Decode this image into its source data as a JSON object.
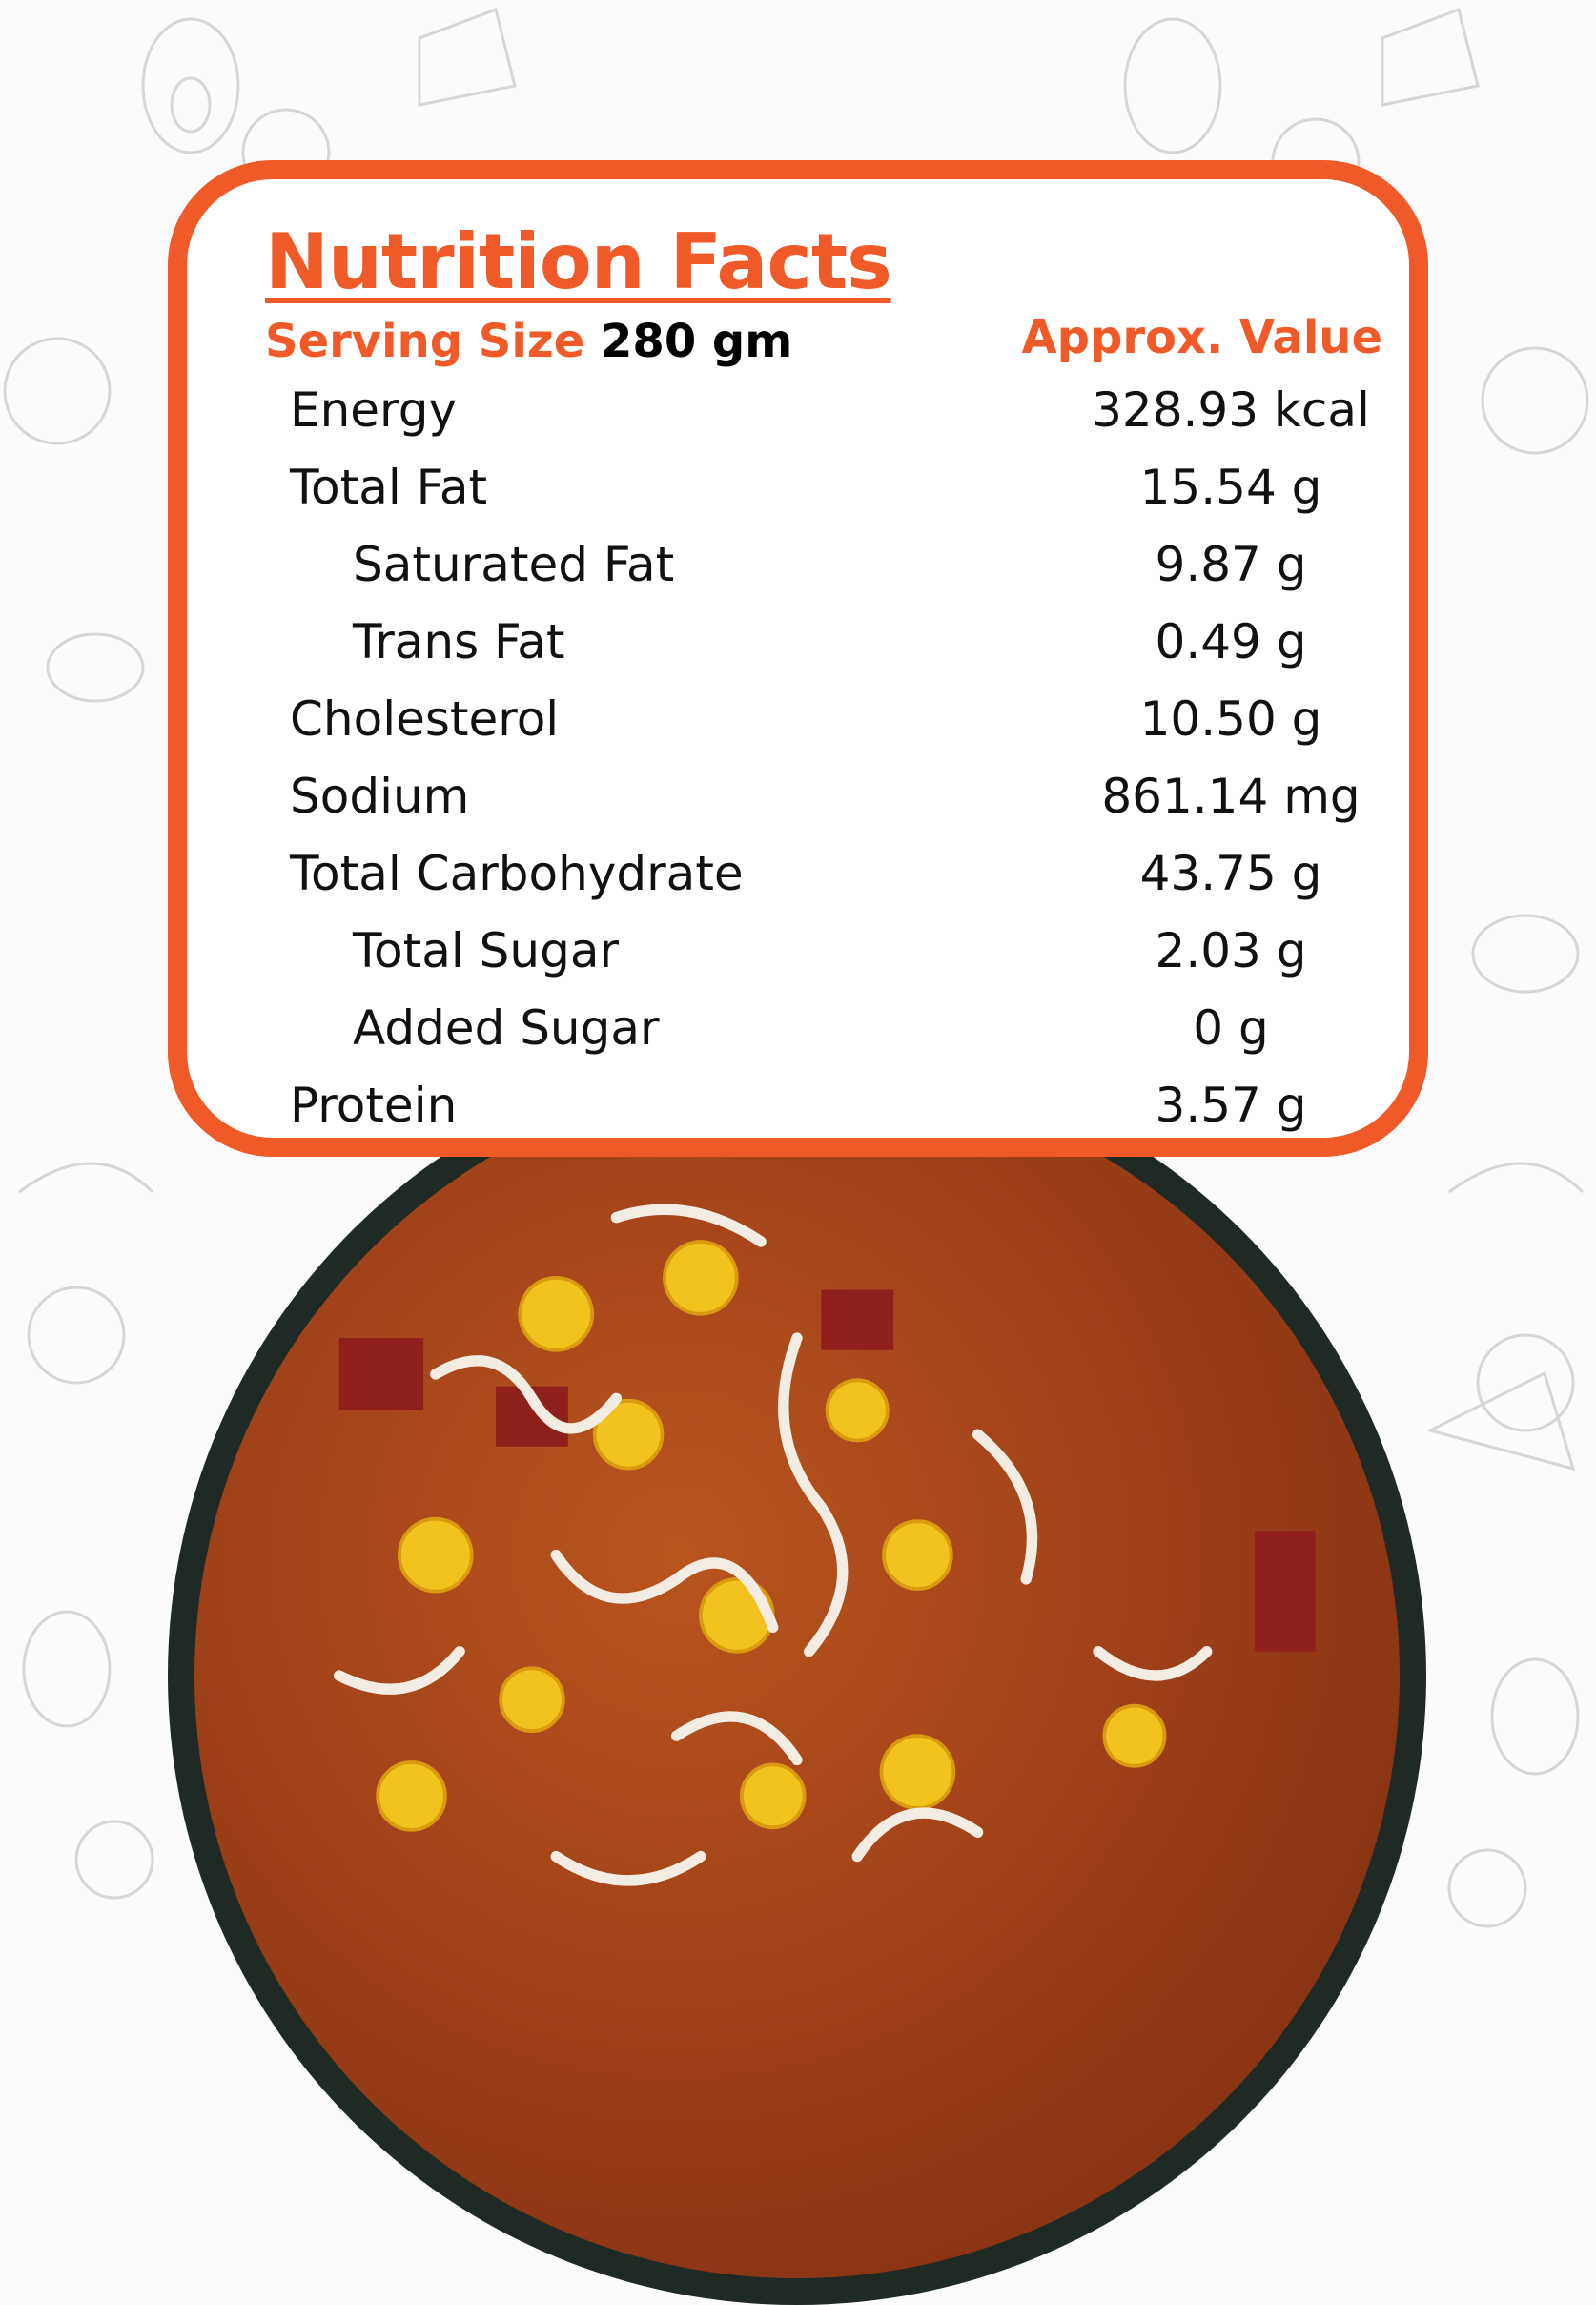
{
  "title": "Nutrition Facts",
  "serving": {
    "label": "Serving Size",
    "value": "280 gm"
  },
  "value_header": "Approx. Value",
  "nutrients": [
    {
      "name": "Energy",
      "value": "328.93 kcal"
    },
    {
      "name": "Total Fat",
      "value": "15.54 g"
    },
    {
      "name": "Saturated Fat",
      "value": "9.87 g"
    },
    {
      "name": "Trans Fat",
      "value": "0.49 g"
    },
    {
      "name": "Cholesterol",
      "value": "10.50 g"
    },
    {
      "name": "Sodium",
      "value": "861.14 mg"
    },
    {
      "name": "Total Carbohydrate",
      "value": "43.75 g"
    },
    {
      "name": "Total Sugar",
      "value": "2.03 g"
    },
    {
      "name": "Added Sugar",
      "value": "0 g"
    },
    {
      "name": "Protein",
      "value": "3.57 g"
    }
  ],
  "colors": {
    "accent": "#ef5a28",
    "text": "#111111",
    "background": "#fbfbfb"
  }
}
